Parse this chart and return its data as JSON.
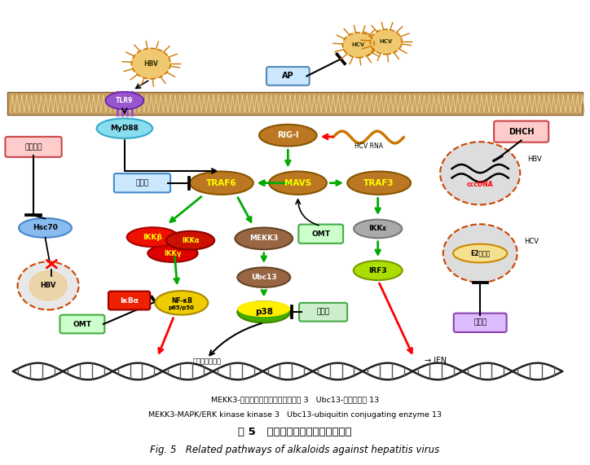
{
  "title_cn": "图 5   生物碱抗肝炎病毒的相关通路",
  "title_en": "Fig. 5   Related pathways of alkaloids against hepatitis virus",
  "legend1_cn": "MEKK3-有丝分裂原活化蛋白激酶激酶 3   Ubc13-泛素结合酶 13",
  "legend2_cn": "MEKK3-MAPK/ERK kinase kinase 3   Ubc13-ubiquitin conjugating enzyme 13",
  "bg_color": "#ffffff"
}
